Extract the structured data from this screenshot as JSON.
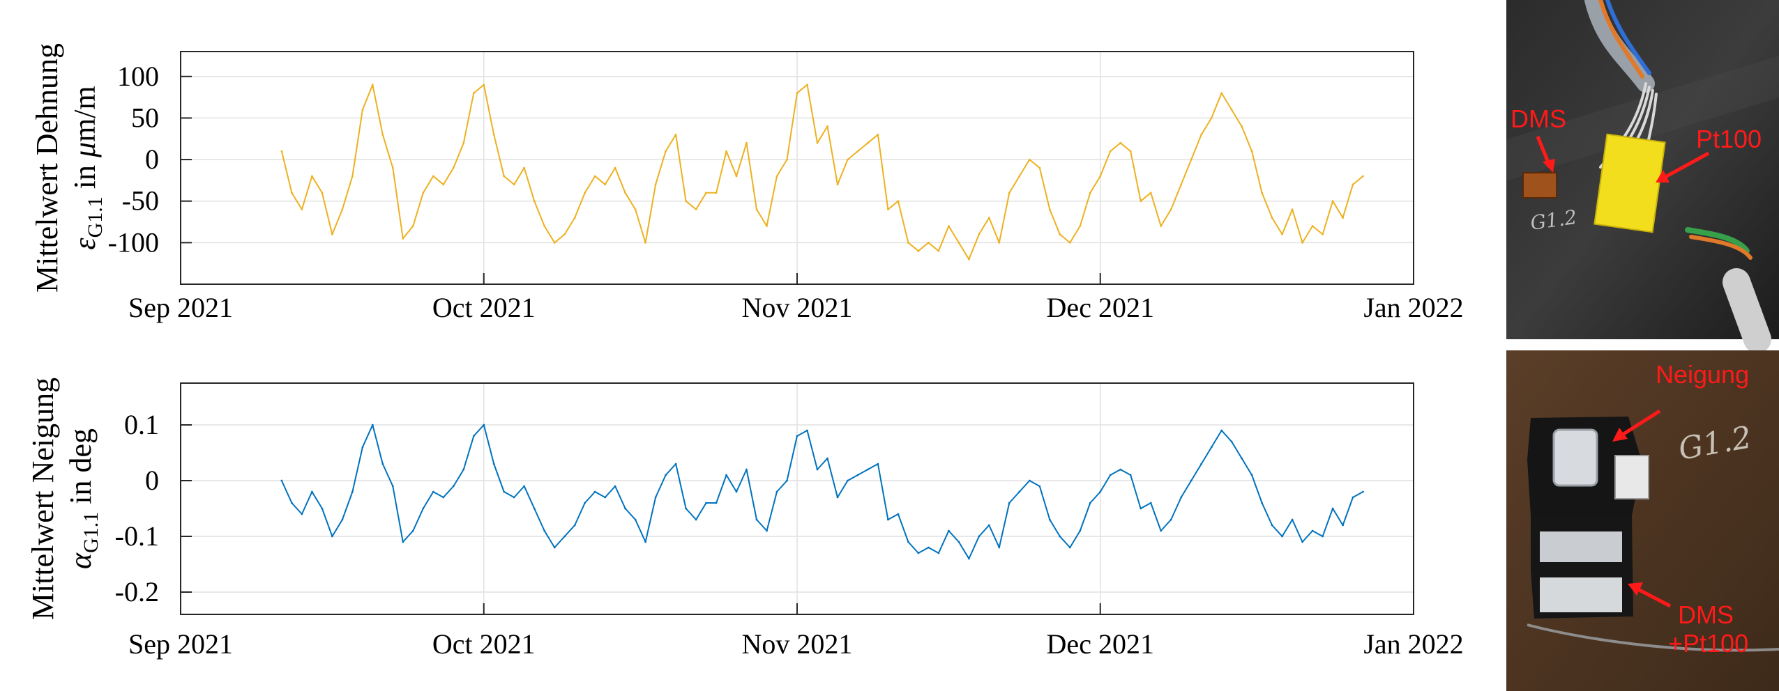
{
  "chart_data": [
    {
      "type": "line",
      "ylabel_line1": "Mittelwert Dehnung",
      "ylabel_symbol": "ε",
      "ylabel_sub": "G1.1",
      "ylabel_unit_prefix": " in ",
      "ylabel_mu": "μ",
      "ylabel_unit": "m/m",
      "xlim": [
        "2021-09-01",
        "2022-01-01"
      ],
      "ylim": [
        -150,
        130
      ],
      "xticks": [
        {
          "date": "2021-09-01",
          "label": "Sep 2021"
        },
        {
          "date": "2021-10-01",
          "label": "Oct 2021"
        },
        {
          "date": "2021-11-01",
          "label": "Nov 2021"
        },
        {
          "date": "2021-12-01",
          "label": "Dec 2021"
        },
        {
          "date": "2022-01-01",
          "label": "Jan 2022"
        }
      ],
      "yticks": [
        {
          "value": 100,
          "label": "100"
        },
        {
          "value": 50,
          "label": "50"
        },
        {
          "value": 0,
          "label": "0"
        },
        {
          "value": -50,
          "label": "-50"
        },
        {
          "value": -100,
          "label": "-100"
        }
      ],
      "grid": true,
      "color": "#EDB120",
      "series": [
        {
          "x": [
            "2021-09-11",
            "2021-09-12",
            "2021-09-13",
            "2021-09-14",
            "2021-09-15",
            "2021-09-16",
            "2021-09-17",
            "2021-09-18",
            "2021-09-19",
            "2021-09-20",
            "2021-09-21",
            "2021-09-22",
            "2021-09-23",
            "2021-09-24",
            "2021-09-25",
            "2021-09-26",
            "2021-09-27",
            "2021-09-28",
            "2021-09-29",
            "2021-09-30",
            "2021-10-01",
            "2021-10-02",
            "2021-10-03",
            "2021-10-04",
            "2021-10-05",
            "2021-10-06",
            "2021-10-07",
            "2021-10-08",
            "2021-10-09",
            "2021-10-10",
            "2021-10-11",
            "2021-10-12",
            "2021-10-13",
            "2021-10-14",
            "2021-10-15",
            "2021-10-16",
            "2021-10-17",
            "2021-10-18",
            "2021-10-19",
            "2021-10-20",
            "2021-10-21",
            "2021-10-22",
            "2021-10-23",
            "2021-10-24",
            "2021-10-25",
            "2021-10-26",
            "2021-10-27",
            "2021-10-28",
            "2021-10-29",
            "2021-10-30",
            "2021-10-31",
            "2021-11-01",
            "2021-11-02",
            "2021-11-03",
            "2021-11-04",
            "2021-11-05",
            "2021-11-06",
            "2021-11-07",
            "2021-11-08",
            "2021-11-09",
            "2021-11-10",
            "2021-11-11",
            "2021-11-12",
            "2021-11-13",
            "2021-11-14",
            "2021-11-15",
            "2021-11-16",
            "2021-11-17",
            "2021-11-18",
            "2021-11-19",
            "2021-11-20",
            "2021-11-21",
            "2021-11-22",
            "2021-11-23",
            "2021-11-24",
            "2021-11-25",
            "2021-11-26",
            "2021-11-27",
            "2021-11-28",
            "2021-11-29",
            "2021-11-30",
            "2021-12-01",
            "2021-12-02",
            "2021-12-03",
            "2021-12-04",
            "2021-12-05",
            "2021-12-06",
            "2021-12-07",
            "2021-12-08",
            "2021-12-09",
            "2021-12-10",
            "2021-12-11",
            "2021-12-12",
            "2021-12-13",
            "2021-12-14",
            "2021-12-15",
            "2021-12-16",
            "2021-12-17",
            "2021-12-18",
            "2021-12-19",
            "2021-12-20",
            "2021-12-21",
            "2021-12-22",
            "2021-12-23",
            "2021-12-24",
            "2021-12-25",
            "2021-12-26",
            "2021-12-27"
          ],
          "y": [
            10,
            -40,
            -60,
            -20,
            -40,
            -90,
            -60,
            -20,
            60,
            90,
            30,
            -10,
            -95,
            -80,
            -40,
            -20,
            -30,
            -10,
            20,
            80,
            90,
            30,
            -20,
            -30,
            -10,
            -50,
            -80,
            -100,
            -90,
            -70,
            -40,
            -20,
            -30,
            -10,
            -40,
            -60,
            -100,
            -30,
            10,
            30,
            -50,
            -60,
            -40,
            -40,
            10,
            -20,
            20,
            -60,
            -80,
            -20,
            0,
            80,
            90,
            20,
            40,
            -30,
            0,
            10,
            20,
            30,
            -60,
            -50,
            -100,
            -110,
            -100,
            -110,
            -80,
            -100,
            -120,
            -90,
            -70,
            -100,
            -40,
            -20,
            0,
            -10,
            -60,
            -90,
            -100,
            -80,
            -40,
            -20,
            10,
            20,
            10,
            -50,
            -40,
            -80,
            -60,
            -30,
            0,
            30,
            50,
            80,
            60,
            40,
            10,
            -40,
            -70,
            -90,
            -60,
            -100,
            -80,
            -90,
            -50,
            -70,
            -30,
            -20
          ]
        }
      ]
    },
    {
      "type": "line",
      "ylabel_line1": "Mittelwert Neigung",
      "ylabel_symbol": "α",
      "ylabel_sub": "G1.1",
      "ylabel_unit_prefix": " in deg",
      "xlim": [
        "2021-09-01",
        "2022-01-01"
      ],
      "ylim": [
        -0.24,
        0.175
      ],
      "xticks": [
        {
          "date": "2021-09-01",
          "label": "Sep 2021"
        },
        {
          "date": "2021-10-01",
          "label": "Oct 2021"
        },
        {
          "date": "2021-11-01",
          "label": "Nov 2021"
        },
        {
          "date": "2021-12-01",
          "label": "Dec 2021"
        },
        {
          "date": "2022-01-01",
          "label": "Jan 2022"
        }
      ],
      "yticks": [
        {
          "value": 0.1,
          "label": "0.1"
        },
        {
          "value": 0,
          "label": "0"
        },
        {
          "value": -0.1,
          "label": "-0.1"
        },
        {
          "value": -0.2,
          "label": "-0.2"
        }
      ],
      "grid": true,
      "color": "#0072BD",
      "series": [
        {
          "x": [
            "2021-09-11",
            "2021-09-12",
            "2021-09-13",
            "2021-09-14",
            "2021-09-15",
            "2021-09-16",
            "2021-09-17",
            "2021-09-18",
            "2021-09-19",
            "2021-09-20",
            "2021-09-21",
            "2021-09-22",
            "2021-09-23",
            "2021-09-24",
            "2021-09-25",
            "2021-09-26",
            "2021-09-27",
            "2021-09-28",
            "2021-09-29",
            "2021-09-30",
            "2021-10-01",
            "2021-10-02",
            "2021-10-03",
            "2021-10-04",
            "2021-10-05",
            "2021-10-06",
            "2021-10-07",
            "2021-10-08",
            "2021-10-09",
            "2021-10-10",
            "2021-10-11",
            "2021-10-12",
            "2021-10-13",
            "2021-10-14",
            "2021-10-15",
            "2021-10-16",
            "2021-10-17",
            "2021-10-18",
            "2021-10-19",
            "2021-10-20",
            "2021-10-21",
            "2021-10-22",
            "2021-10-23",
            "2021-10-24",
            "2021-10-25",
            "2021-10-26",
            "2021-10-27",
            "2021-10-28",
            "2021-10-29",
            "2021-10-30",
            "2021-10-31",
            "2021-11-01",
            "2021-11-02",
            "2021-11-03",
            "2021-11-04",
            "2021-11-05",
            "2021-11-06",
            "2021-11-07",
            "2021-11-08",
            "2021-11-09",
            "2021-11-10",
            "2021-11-11",
            "2021-11-12",
            "2021-11-13",
            "2021-11-14",
            "2021-11-15",
            "2021-11-16",
            "2021-11-17",
            "2021-11-18",
            "2021-11-19",
            "2021-11-20",
            "2021-11-21",
            "2021-11-22",
            "2021-11-23",
            "2021-11-24",
            "2021-11-25",
            "2021-11-26",
            "2021-11-27",
            "2021-11-28",
            "2021-11-29",
            "2021-11-30",
            "2021-12-01",
            "2021-12-02",
            "2021-12-03",
            "2021-12-04",
            "2021-12-05",
            "2021-12-06",
            "2021-12-07",
            "2021-12-08",
            "2021-12-09",
            "2021-12-10",
            "2021-12-11",
            "2021-12-12",
            "2021-12-13",
            "2021-12-14",
            "2021-12-15",
            "2021-12-16",
            "2021-12-17",
            "2021-12-18",
            "2021-12-19",
            "2021-12-20",
            "2021-12-21",
            "2021-12-22",
            "2021-12-23",
            "2021-12-24",
            "2021-12-25",
            "2021-12-26",
            "2021-12-27"
          ],
          "y": [
            0,
            -0.04,
            -0.06,
            -0.02,
            -0.05,
            -0.1,
            -0.07,
            -0.02,
            0.06,
            0.1,
            0.03,
            -0.01,
            -0.11,
            -0.09,
            -0.05,
            -0.02,
            -0.03,
            -0.01,
            0.02,
            0.08,
            0.1,
            0.03,
            -0.02,
            -0.03,
            -0.01,
            -0.05,
            -0.09,
            -0.12,
            -0.1,
            -0.08,
            -0.04,
            -0.02,
            -0.03,
            -0.01,
            -0.05,
            -0.07,
            -0.11,
            -0.03,
            0.01,
            0.03,
            -0.05,
            -0.07,
            -0.04,
            -0.04,
            0.01,
            -0.02,
            0.02,
            -0.07,
            -0.09,
            -0.02,
            0,
            0.08,
            0.09,
            0.02,
            0.04,
            -0.03,
            0,
            0.01,
            0.02,
            0.03,
            -0.07,
            -0.06,
            -0.11,
            -0.13,
            -0.12,
            -0.13,
            -0.09,
            -0.11,
            -0.14,
            -0.1,
            -0.08,
            -0.12,
            -0.04,
            -0.02,
            0,
            -0.01,
            -0.07,
            -0.1,
            -0.12,
            -0.09,
            -0.04,
            -0.02,
            0.01,
            0.02,
            0.01,
            -0.05,
            -0.04,
            -0.09,
            -0.07,
            -0.03,
            0,
            0.03,
            0.06,
            0.09,
            0.07,
            0.04,
            0.01,
            -0.04,
            -0.08,
            -0.1,
            -0.07,
            -0.11,
            -0.09,
            -0.1,
            -0.05,
            -0.08,
            -0.03,
            -0.02
          ]
        }
      ]
    }
  ],
  "photos": [
    {
      "labels": {
        "dms": "DMS",
        "pt100": "Pt100",
        "handwriting": "G1.2"
      }
    },
    {
      "labels": {
        "neigung": "Neigung",
        "dms_pt100_line1": "DMS",
        "dms_pt100_line2": "+Pt100",
        "handwriting": "G1.2"
      }
    }
  ]
}
